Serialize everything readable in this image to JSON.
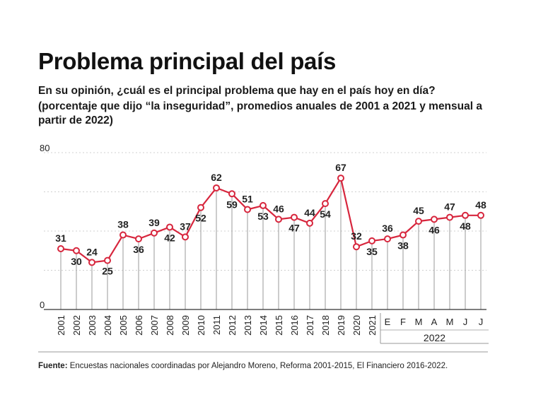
{
  "title": "Problema principal del país",
  "subtitle_line1": "En su opinión, ¿cuál es el principal problema que hay en el país hoy en día?",
  "subtitle_line2": "(porcentaje que dijo “la inseguridad”, promedios anuales de 2001 a 2021 y mensual a",
  "subtitle_line3": "partir de 2022)",
  "source_label": "Fuente:",
  "source_text": " Encuestas nacionales coordinadas por Alejandro Moreno, Reforma 2001-2015, El Financiero 2016-2022.",
  "colors": {
    "line": "#d7263d",
    "marker_fill": "#ffffff",
    "axis": "#333333",
    "grid": "#d0d0d0",
    "bands": "#999999"
  },
  "chart_data": {
    "type": "line",
    "categories": [
      "2001",
      "2002",
      "2003",
      "2004",
      "2005",
      "2006",
      "2007",
      "2008",
      "2009",
      "2010",
      "2011",
      "2012",
      "2013",
      "2014",
      "2015",
      "2016",
      "2017",
      "2018",
      "2019",
      "2020",
      "2021",
      "E",
      "F",
      "M",
      "A",
      "M",
      "J",
      "J"
    ],
    "values": [
      31,
      30,
      24,
      25,
      38,
      36,
      39,
      42,
      37,
      52,
      62,
      59,
      51,
      53,
      46,
      47,
      44,
      54,
      67,
      32,
      35,
      36,
      38,
      45,
      46,
      47,
      48,
      48
    ],
    "value_labels": [
      31,
      30,
      24,
      25,
      38,
      36,
      39,
      42,
      37,
      52,
      62,
      59,
      51,
      53,
      46,
      47,
      44,
      54,
      67,
      32,
      35,
      36,
      38,
      45,
      46,
      47,
      48,
      48
    ],
    "label_position": [
      "above",
      "below",
      "above",
      "below",
      "above",
      "below",
      "above",
      "below",
      "above",
      "below",
      "above",
      "below",
      "above",
      "below",
      "above",
      "below",
      "above",
      "below",
      "above",
      "above",
      "below",
      "above",
      "below",
      "above",
      "below",
      "above",
      "below",
      "above"
    ],
    "group_label": "2022",
    "ylim": [
      0,
      80
    ],
    "y_tick_labels": [
      "0",
      "80"
    ],
    "grid": true
  }
}
